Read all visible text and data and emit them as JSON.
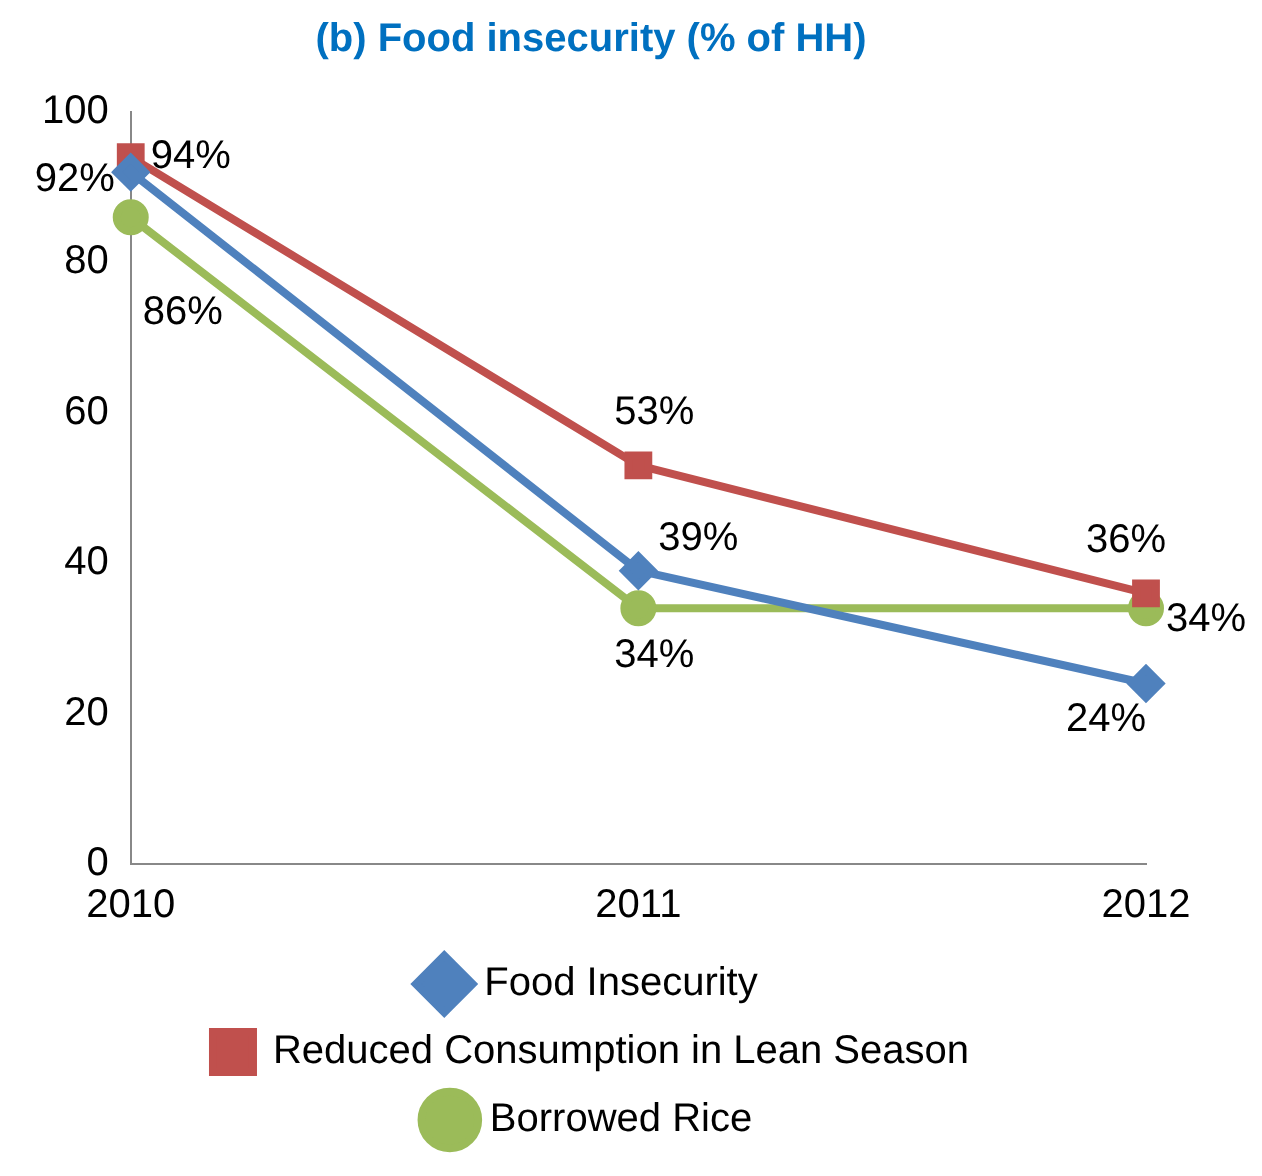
{
  "chart_data": {
    "type": "line",
    "title": "(b) Food insecurity (% of HH)",
    "categories": [
      "2010",
      "2011",
      "2012"
    ],
    "series": [
      {
        "name": "Food Insecurity",
        "color": "#4f81bd",
        "marker": "diamond",
        "values": [
          92,
          39,
          24
        ],
        "value_labels": [
          "92%",
          "39%",
          "24%"
        ]
      },
      {
        "name": "Reduced Consumption in Lean Season",
        "color": "#c0504d",
        "marker": "square",
        "values": [
          94,
          53,
          36
        ],
        "value_labels": [
          "94%",
          "53%",
          "36%"
        ]
      },
      {
        "name": "Borrowed Rice",
        "color": "#9bbb59",
        "marker": "circle",
        "values": [
          86,
          34,
          34
        ],
        "value_labels": [
          "86%",
          "34%",
          "34%"
        ]
      }
    ],
    "ylim": [
      0,
      100
    ],
    "yticks": [
      0,
      20,
      40,
      60,
      80,
      100
    ],
    "grid": false,
    "legend": "bottom"
  }
}
